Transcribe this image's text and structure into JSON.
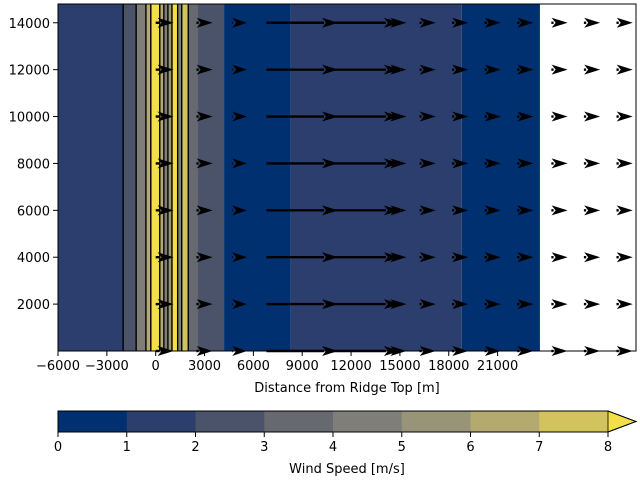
{
  "chart_data": {
    "type": "heatmap",
    "title": "",
    "xlabel": "Distance from Ridge Top [m]",
    "ylabel": "",
    "xlim": [
      -6000,
      29500
    ],
    "ylim": [
      0,
      14800
    ],
    "x_ticks": [
      -6000,
      -3000,
      0,
      3000,
      6000,
      9000,
      12000,
      15000,
      18000,
      21000
    ],
    "x_tick_labels": [
      "−6000",
      "−3000",
      "0",
      "3000",
      "6000",
      "9000",
      "12000",
      "15000",
      "18000",
      "21000"
    ],
    "y_ticks": [
      2000,
      4000,
      6000,
      8000,
      10000,
      12000,
      14000
    ],
    "y_tick_labels": [
      "2000",
      "4000",
      "6000",
      "8000",
      "10000",
      "12000",
      "14000"
    ],
    "colorbar": {
      "label": "Wind Speed [m/s]",
      "levels": [
        0,
        1,
        2,
        3,
        4,
        5,
        6,
        7,
        8
      ],
      "tick_labels": [
        "0",
        "1",
        "2",
        "3",
        "4",
        "5",
        "6",
        "7",
        "8"
      ],
      "extend": "max",
      "colors": [
        "#00306f",
        "#2c3e6d",
        "#4a5369",
        "#676970",
        "#7f7e78",
        "#989478",
        "#b4a96e",
        "#d2c35f",
        "#f3df48"
      ]
    },
    "wind_speed_bands": [
      {
        "x_start": -6000,
        "x_end": -2000,
        "speed": 1.5
      },
      {
        "x_start": -2000,
        "x_end": -1200,
        "speed": 2.5
      },
      {
        "x_start": -1200,
        "x_end": -600,
        "speed": 4.5
      },
      {
        "x_start": -600,
        "x_end": -300,
        "speed": 6.5
      },
      {
        "x_start": -300,
        "x_end": 250,
        "speed": 8.5
      },
      {
        "x_start": 250,
        "x_end": 500,
        "speed": 6.5
      },
      {
        "x_start": 500,
        "x_end": 750,
        "speed": 4.5
      },
      {
        "x_start": 750,
        "x_end": 1000,
        "speed": 5.5
      },
      {
        "x_start": 1000,
        "x_end": 1350,
        "speed": 8.5
      },
      {
        "x_start": 1350,
        "x_end": 1600,
        "speed": 4.5
      },
      {
        "x_start": 1600,
        "x_end": 2000,
        "speed": 7.5
      },
      {
        "x_start": 2000,
        "x_end": 2600,
        "speed": 3.5
      },
      {
        "x_start": 2600,
        "x_end": 4200,
        "speed": 2.5
      },
      {
        "x_start": 4200,
        "x_end": 8300,
        "speed": 0.5
      },
      {
        "x_start": 8300,
        "x_end": 18800,
        "speed": 1.5
      },
      {
        "x_start": 18800,
        "x_end": 23600,
        "speed": 0.5
      }
    ],
    "contour_lines_x": [
      -2000,
      -1200,
      -600,
      -300,
      250,
      500,
      750,
      1000,
      1350,
      1600,
      2000
    ],
    "quiver": {
      "x": [
        0,
        2500,
        4700,
        6800,
        10600,
        14400,
        16200,
        18200,
        20200,
        22200,
        24300,
        26300,
        28300
      ],
      "y": [
        0,
        2000,
        4000,
        6000,
        8000,
        10000,
        12000,
        14000
      ],
      "u_length_m": [
        1100,
        1000,
        900,
        4400,
        4400,
        1000,
        1000,
        1000,
        1000,
        1000,
        1000,
        1000,
        1000
      ]
    }
  }
}
